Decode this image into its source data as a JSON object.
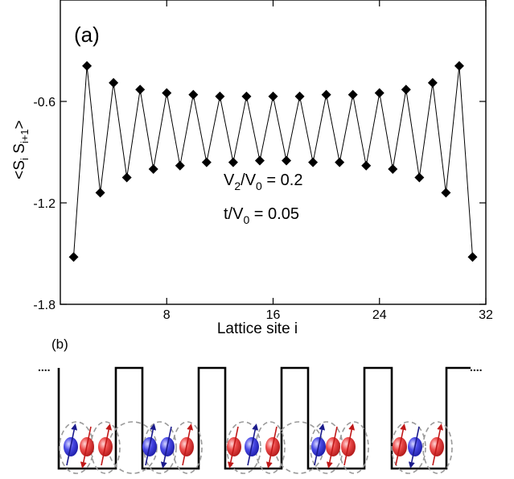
{
  "chart_data": {
    "type": "line",
    "panel_label": "(a)",
    "xlabel": "Lattice site i",
    "ylabel": {
      "base": "<S",
      "sub1": "i",
      "mid": " S",
      "sub2": "i+1",
      "end": ">"
    },
    "xlim": [
      0,
      32
    ],
    "ylim": [
      -1.8,
      0
    ],
    "xticks": [
      "8",
      "16",
      "24",
      "32"
    ],
    "yticks": [
      "-0.6",
      "-1.2",
      "-1.8"
    ],
    "grid": false,
    "marker": "diamond",
    "color": "#000000",
    "annotations": [
      {
        "base": "V",
        "sub": "2",
        "mid": "/V",
        "sub2": "0",
        "rest": " = 0.2"
      },
      {
        "base": "t/V",
        "sub": "0",
        "rest": " = 0.05"
      }
    ],
    "series": [
      {
        "x": [
          1,
          2,
          3,
          4,
          5,
          6,
          7,
          8,
          9,
          10,
          11,
          12,
          13,
          14,
          15,
          16,
          17,
          18,
          19,
          20,
          21,
          22,
          23,
          24,
          25,
          26,
          27,
          28,
          29,
          30,
          31
        ],
        "y": [
          -1.52,
          -0.39,
          -1.14,
          -0.49,
          -1.05,
          -0.53,
          -1.0,
          -0.55,
          -0.98,
          -0.56,
          -0.96,
          -0.57,
          -0.96,
          -0.57,
          -0.95,
          -0.57,
          -0.95,
          -0.57,
          -0.96,
          -0.56,
          -0.96,
          -0.56,
          -0.98,
          -0.55,
          -1.0,
          -0.53,
          -1.05,
          -0.49,
          -1.14,
          -0.39,
          -1.52
        ]
      }
    ]
  },
  "diagram": {
    "panel_label": "(b)",
    "continuation_mark": "....",
    "colors": {
      "left_blue": "#3535d8",
      "red": "#e23a3a",
      "dashed": "#9a9a9a"
    }
  }
}
